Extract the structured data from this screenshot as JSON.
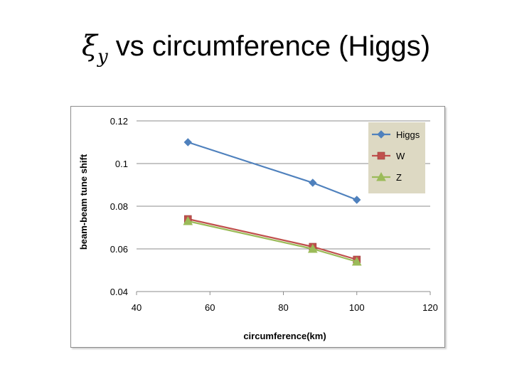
{
  "slide": {
    "title_symbol": "ξ",
    "title_subscript": "y",
    "title_text": " vs circumference (Higgs)"
  },
  "chart_data": {
    "type": "line",
    "title": "",
    "xlabel": "circumference(km)",
    "ylabel": "beam-beam tune shift",
    "xlim": [
      40,
      120
    ],
    "ylim": [
      0.04,
      0.12
    ],
    "xticks": [
      "40",
      "60",
      "80",
      "100",
      "120"
    ],
    "yticks": [
      "0.04",
      "0.06",
      "0.08",
      "0.1",
      "0.12"
    ],
    "grid": "horizontal",
    "legend_position": "top-right",
    "series": [
      {
        "name": "Higgs",
        "color": "#4f81bd",
        "marker": "diamond",
        "x": [
          54,
          88,
          100
        ],
        "y": [
          0.11,
          0.091,
          0.083
        ]
      },
      {
        "name": "W",
        "color": "#c0504d",
        "marker": "square",
        "x": [
          54,
          88,
          100
        ],
        "y": [
          0.074,
          0.061,
          0.055
        ]
      },
      {
        "name": "Z",
        "color": "#9bbb59",
        "marker": "triangle",
        "x": [
          54,
          88,
          100
        ],
        "y": [
          0.073,
          0.06,
          0.054
        ]
      }
    ]
  }
}
